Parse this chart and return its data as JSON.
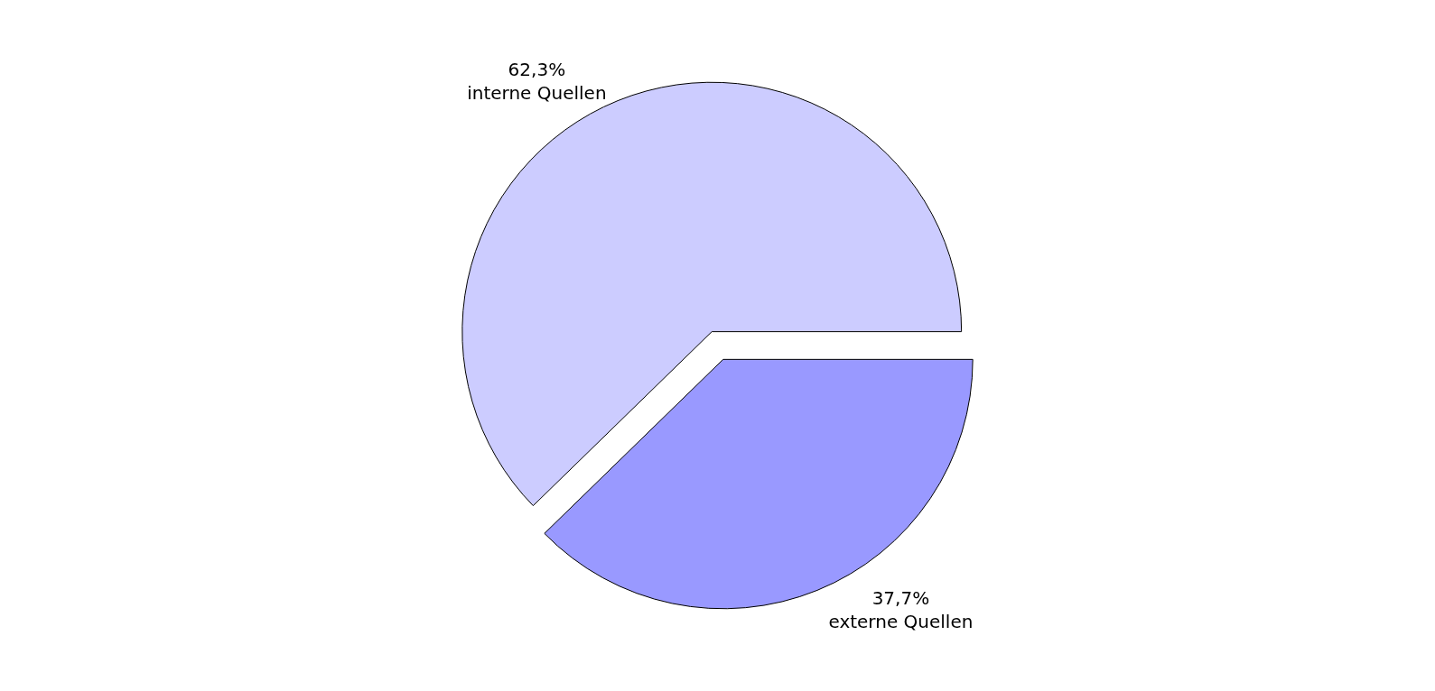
{
  "chart_data": {
    "type": "pie",
    "categories": [
      "externe Quellen",
      "interne Quellen"
    ],
    "values": [
      37.7,
      62.3
    ],
    "value_labels": [
      "37,7%",
      "62,3%"
    ],
    "colors": [
      "#9999ff",
      "#ccccff"
    ],
    "legend": false
  }
}
